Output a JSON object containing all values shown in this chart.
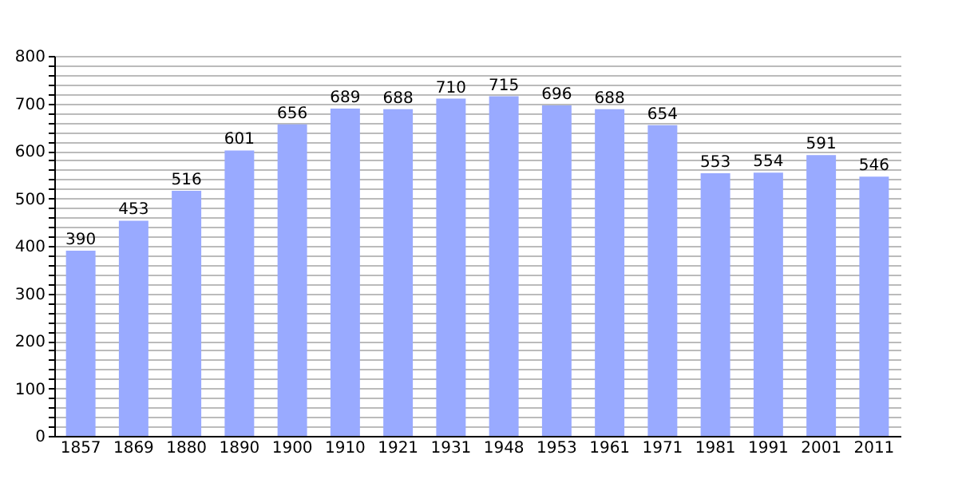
{
  "chart_data": {
    "type": "bar",
    "categories": [
      "1857",
      "1869",
      "1880",
      "1890",
      "1900",
      "1910",
      "1921",
      "1931",
      "1948",
      "1953",
      "1961",
      "1971",
      "1981",
      "1991",
      "2001",
      "2011"
    ],
    "values": [
      390,
      453,
      516,
      601,
      656,
      689,
      688,
      710,
      715,
      696,
      688,
      654,
      553,
      554,
      591,
      546
    ],
    "color": "#99aaff",
    "data_labels": true,
    "grid": "y",
    "ylim": [
      0,
      800
    ],
    "yticks": [
      0,
      {
        "value": 20,
        "label": null
      },
      {
        "value": 40,
        "label": null
      },
      {
        "value": 60,
        "label": null
      },
      {
        "value": 80,
        "label": null
      },
      100,
      {
        "value": 120,
        "label": null
      },
      {
        "value": 140,
        "label": null
      },
      {
        "value": 160,
        "label": null
      },
      {
        "value": 180,
        "label": null
      },
      200,
      {
        "value": 220,
        "label": null
      },
      {
        "value": 240,
        "label": null
      },
      {
        "value": 260,
        "label": null
      },
      {
        "value": 280,
        "label": null
      },
      300,
      {
        "value": 320,
        "label": null
      },
      {
        "value": 340,
        "label": null
      },
      {
        "value": 360,
        "label": null
      },
      {
        "value": 380,
        "label": null
      },
      400,
      {
        "value": 420,
        "label": null
      },
      {
        "value": 440,
        "label": null
      },
      {
        "value": 460,
        "label": null
      },
      {
        "value": 480,
        "label": null
      },
      500,
      {
        "value": 520,
        "label": null
      },
      {
        "value": 540,
        "label": null
      },
      {
        "value": 560,
        "label": null
      },
      {
        "value": 580,
        "label": null
      },
      600,
      {
        "value": 620,
        "label": null
      },
      {
        "value": 640,
        "label": null
      },
      {
        "value": 660,
        "label": null
      },
      {
        "value": 680,
        "label": null
      },
      700,
      {
        "value": 720,
        "label": null
      },
      {
        "value": 740,
        "label": null
      },
      {
        "value": 760,
        "label": null
      },
      {
        "value": 780,
        "label": null
      },
      800
    ]
  }
}
